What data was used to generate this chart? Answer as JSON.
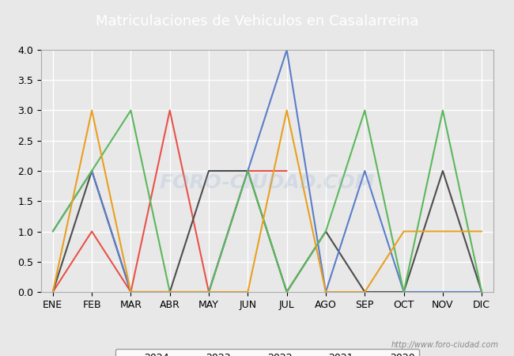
{
  "title": "Matriculaciones de Vehiculos en Casalarreina",
  "months": [
    "ENE",
    "FEB",
    "MAR",
    "ABR",
    "MAY",
    "JUN",
    "JUL",
    "AGO",
    "SEP",
    "OCT",
    "NOV",
    "DIC"
  ],
  "series": {
    "2024": [
      0,
      1,
      0,
      3,
      0,
      2,
      2,
      null,
      null,
      null,
      null,
      null
    ],
    "2023": [
      0,
      2,
      0,
      0,
      2,
      2,
      0,
      1,
      0,
      0,
      2,
      0
    ],
    "2022": [
      1,
      2,
      0,
      0,
      0,
      2,
      4,
      0,
      2,
      0,
      0,
      0
    ],
    "2021": [
      1,
      2,
      3,
      0,
      0,
      2,
      0,
      1,
      3,
      0,
      3,
      0
    ],
    "2020": [
      0,
      3,
      0,
      0,
      0,
      0,
      3,
      0,
      0,
      1,
      1,
      1
    ]
  },
  "colors": {
    "2024": "#e8534a",
    "2023": "#4d4d4d",
    "2022": "#5b7ec9",
    "2021": "#5cb85c",
    "2020": "#e8a020"
  },
  "ylim": [
    0,
    4.0
  ],
  "yticks": [
    0.0,
    0.5,
    1.0,
    1.5,
    2.0,
    2.5,
    3.0,
    3.5,
    4.0
  ],
  "background_color": "#e8e8e8",
  "plot_bg_color": "#e8e8e8",
  "title_bg_color": "#5b8dc9",
  "title_text_color": "#ffffff",
  "grid_color": "#ffffff",
  "watermark_center": "FORO-CIUDAD.COM",
  "watermark_url": "http://www.foro-ciudad.com"
}
